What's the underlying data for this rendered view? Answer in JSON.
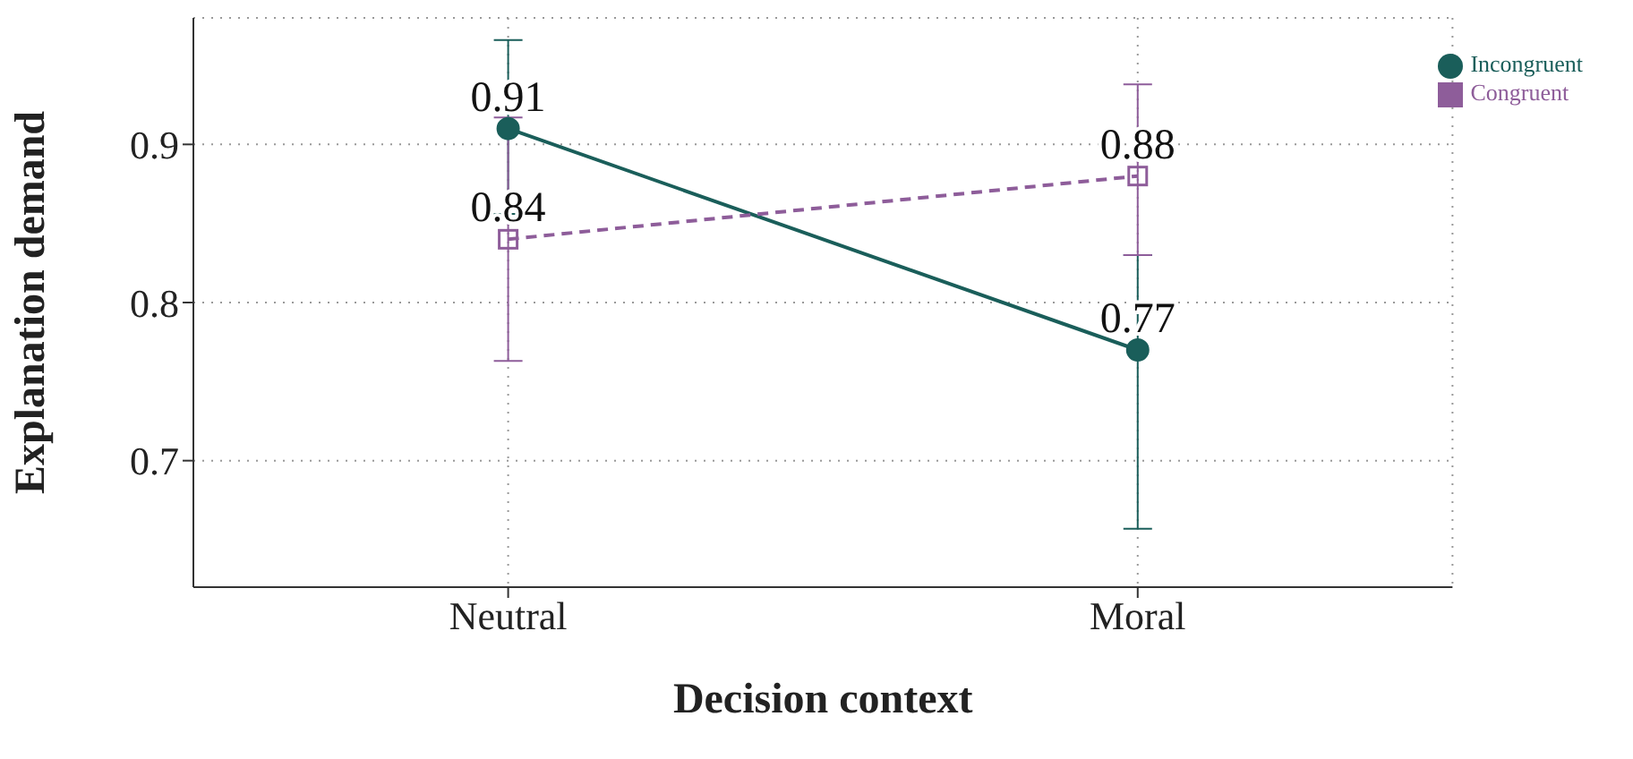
{
  "chart_data": {
    "type": "line",
    "xlabel": "Decision context",
    "ylabel": "Explanation demand",
    "categories": [
      "Neutral",
      "Moral"
    ],
    "series": [
      {
        "name": "Incongruent",
        "color": "#1a5e5a",
        "values": [
          0.91,
          0.77
        ],
        "errors": [
          [
            0.856,
            0.966
          ],
          [
            0.657,
            0.83
          ]
        ],
        "marker": "circle",
        "line_style": "solid"
      },
      {
        "name": "Congruent",
        "color": "#8e5d9a",
        "values": [
          0.84,
          0.88
        ],
        "errors": [
          [
            0.763,
            0.917
          ],
          [
            0.83,
            0.938
          ]
        ],
        "marker": "square",
        "line_style": "dashed"
      }
    ],
    "ylim": [
      0.62,
      0.98
    ],
    "yticks": [
      0.7,
      0.8,
      0.9
    ],
    "grid": true,
    "legend": "top right",
    "data_labels": true
  }
}
